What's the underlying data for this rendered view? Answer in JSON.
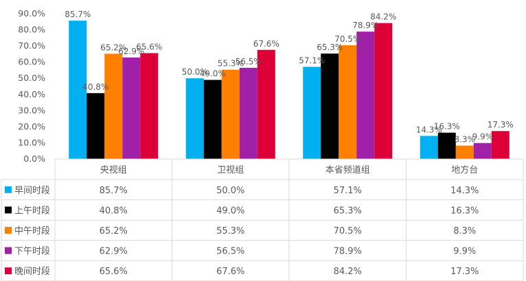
{
  "chart_data": {
    "type": "bar",
    "categories": [
      "央视组",
      "卫视组",
      "本省频道组",
      "地方台"
    ],
    "series": [
      {
        "name": "早间时段",
        "color": "#00B0F0",
        "values": [
          85.7,
          50.0,
          57.1,
          14.3
        ],
        "labels": [
          "85.7%",
          "50.0%",
          "57.1%",
          "14.3%"
        ]
      },
      {
        "name": "上午时段",
        "color": "#000000",
        "values": [
          40.8,
          49.0,
          65.3,
          16.3
        ],
        "labels": [
          "40.8%",
          "49.0%",
          "65.3%",
          "16.3%"
        ]
      },
      {
        "name": "中午时段",
        "color": "#FF7F00",
        "values": [
          65.2,
          55.3,
          70.5,
          8.3
        ],
        "labels": [
          "65.2%",
          "55.3%",
          "70.5%",
          "8.3%"
        ]
      },
      {
        "name": "下午时段",
        "color": "#A020A8",
        "values": [
          62.9,
          56.5,
          78.9,
          9.9
        ],
        "labels": [
          "62.9%",
          "56.5%",
          "78.9%",
          "9.9%"
        ]
      },
      {
        "name": "晚间时段",
        "color": "#DC0037",
        "values": [
          65.6,
          67.6,
          84.2,
          17.3
        ],
        "labels": [
          "65.6%",
          "67.6%",
          "84.2%",
          "17.3%"
        ]
      }
    ],
    "y_ticks": [
      "0.0%",
      "10.0%",
      "20.0%",
      "30.0%",
      "40.0%",
      "50.0%",
      "60.0%",
      "70.0%",
      "80.0%",
      "90.0%"
    ],
    "ylim": [
      0,
      90
    ],
    "grid": false,
    "legend": "data-table"
  }
}
